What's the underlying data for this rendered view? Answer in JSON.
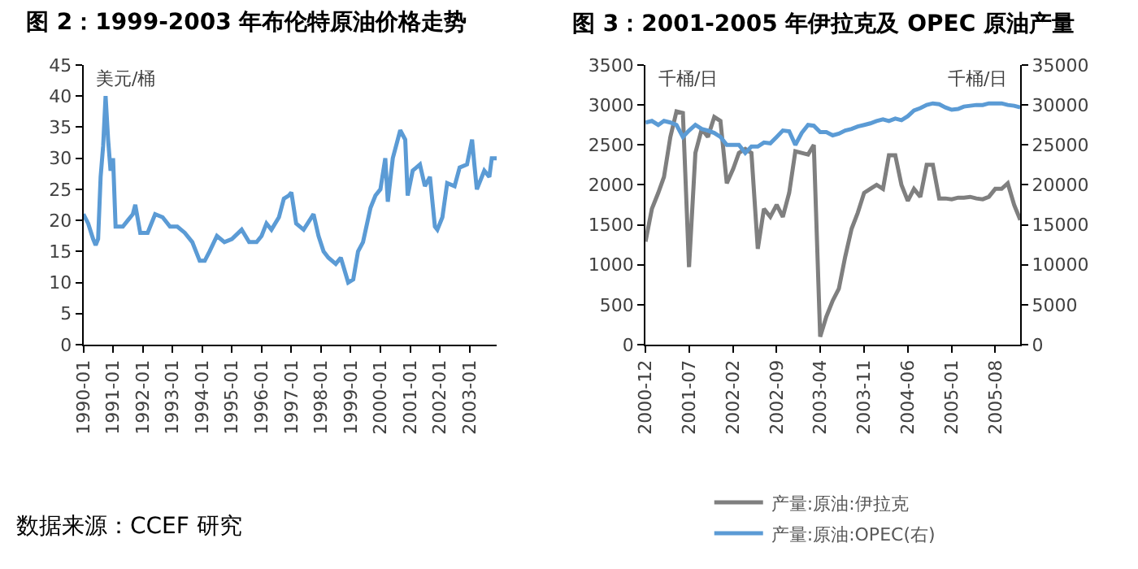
{
  "chart_data": [
    {
      "type": "line",
      "title": "图 2：1999-2003 年布伦特原油价格走势",
      "ylabel": "美元/桶",
      "x": [
        "1990-01",
        "1990-03",
        "1990-05",
        "1990-06",
        "1990-07",
        "1990-08",
        "1990-09",
        "1990-10",
        "1990-11",
        "1990-12",
        "1991-01",
        "1991-02",
        "1991-03",
        "1991-05",
        "1991-07",
        "1991-09",
        "1991-10",
        "1991-12",
        "1992-03",
        "1992-06",
        "1992-09",
        "1992-12",
        "1993-03",
        "1993-06",
        "1993-09",
        "1993-12",
        "1994-02",
        "1994-04",
        "1994-07",
        "1994-10",
        "1995-01",
        "1995-05",
        "1995-08",
        "1995-11",
        "1996-01",
        "1996-03",
        "1996-05",
        "1996-08",
        "1996-10",
        "1996-12",
        "1997-01",
        "1997-03",
        "1997-06",
        "1997-10",
        "1997-12",
        "1998-02",
        "1998-04",
        "1998-07",
        "1998-09",
        "1998-12",
        "1999-02",
        "1999-04",
        "1999-06",
        "1999-09",
        "1999-11",
        "2000-01",
        "2000-03",
        "2000-04",
        "2000-06",
        "2000-09",
        "2000-11",
        "2000-12",
        "2001-02",
        "2001-05",
        "2001-07",
        "2001-09",
        "2001-11",
        "2001-12",
        "2002-02",
        "2002-04",
        "2002-07",
        "2002-09",
        "2002-12",
        "2003-02",
        "2003-03",
        "2003-04",
        "2003-07",
        "2003-09",
        "2003-10",
        "2003-12"
      ],
      "series": [
        {
          "color": "#5b9bd5",
          "values": [
            21,
            19.5,
            17,
            16,
            17,
            27,
            32,
            40,
            33,
            28,
            30,
            19,
            19,
            19,
            20,
            21,
            22.5,
            18,
            18,
            21,
            20.5,
            19,
            19,
            18,
            16.5,
            13.5,
            13.5,
            15,
            17.5,
            16.5,
            17,
            18.5,
            16.5,
            16.5,
            17.5,
            19.5,
            18.5,
            20.5,
            23.5,
            24,
            24.5,
            19.5,
            18.5,
            21,
            17.5,
            15,
            14,
            13,
            14,
            10,
            10.5,
            15,
            16.5,
            22,
            24,
            25,
            30,
            23,
            30,
            34.5,
            33,
            24,
            28,
            29,
            25.5,
            27,
            19,
            18.5,
            20.5,
            26,
            25.5,
            28.5,
            29,
            33,
            29,
            25,
            28,
            27,
            30,
            30
          ]
        }
      ],
      "xlim": [
        "1990-01",
        "2003-12"
      ],
      "xticks": [
        {
          "value": "1990-01",
          "label": "1990-01"
        },
        {
          "value": "1991-01",
          "label": "1991-01"
        },
        {
          "value": "1992-01",
          "label": "1992-01"
        },
        {
          "value": "1993-01",
          "label": "1993-01"
        },
        {
          "value": "1994-01",
          "label": "1994-01"
        },
        {
          "value": "1995-01",
          "label": "1995-01"
        },
        {
          "value": "1996-01",
          "label": "1996-01"
        },
        {
          "value": "1997-01",
          "label": "1997-01"
        },
        {
          "value": "1998-01",
          "label": "1998-01"
        },
        {
          "value": "1999-01",
          "label": "1999-01"
        },
        {
          "value": "2000-01",
          "label": "2000-01"
        },
        {
          "value": "2001-01",
          "label": "2001-01"
        },
        {
          "value": "2002-01",
          "label": "2002-01"
        },
        {
          "value": "2003-01",
          "label": "2003-01"
        }
      ],
      "ylim": [
        0,
        45
      ],
      "yticks": [
        0,
        5,
        10,
        15,
        20,
        25,
        30,
        35,
        40,
        45
      ],
      "legend": false,
      "annotations": [
        "数据来源：CCEF 研究"
      ]
    },
    {
      "type": "line",
      "title": "图 3：2001-2005 年伊拉克及 OPEC 原油产量",
      "ylabel": "千桶/日",
      "y2label": "千桶/日",
      "x": [
        "2000-12",
        "2001-01",
        "2001-02",
        "2001-03",
        "2001-04",
        "2001-05",
        "2001-06",
        "2001-07",
        "2001-08",
        "2001-09",
        "2001-10",
        "2001-11",
        "2001-12",
        "2002-01",
        "2002-02",
        "2002-03",
        "2002-04",
        "2002-05",
        "2002-06",
        "2002-07",
        "2002-08",
        "2002-09",
        "2002-10",
        "2002-11",
        "2002-12",
        "2003-01",
        "2003-02",
        "2003-03",
        "2003-04",
        "2003-05",
        "2003-06",
        "2003-07",
        "2003-08",
        "2003-09",
        "2003-10",
        "2003-11",
        "2003-12",
        "2004-01",
        "2004-02",
        "2004-03",
        "2004-04",
        "2004-05",
        "2004-06",
        "2004-07",
        "2004-08",
        "2004-09",
        "2004-10",
        "2004-11",
        "2004-12",
        "2005-01",
        "2005-02",
        "2005-03",
        "2005-04",
        "2005-05",
        "2005-06",
        "2005-07",
        "2005-08",
        "2005-09",
        "2005-10",
        "2005-11",
        "2005-12"
      ],
      "series": [
        {
          "name": "产量:原油:伊拉克",
          "color": "#7f7f7f",
          "values": [
            1290,
            1700,
            1900,
            2100,
            2600,
            2920,
            2900,
            970,
            2400,
            2700,
            2600,
            2850,
            2800,
            2020,
            2200,
            2400,
            2450,
            2400,
            1200,
            1700,
            1600,
            1750,
            1600,
            1900,
            2420,
            2400,
            2380,
            2500,
            100,
            350,
            550,
            700,
            1100,
            1450,
            1650,
            1900,
            1950,
            2000,
            1950,
            2370,
            2370,
            2000,
            1800,
            1950,
            1850,
            2250,
            2250,
            1830,
            1830,
            1820,
            1840,
            1840,
            1850,
            1830,
            1820,
            1850,
            1950,
            1950,
            2020,
            1750,
            1560
          ]
        },
        {
          "name": "产量:原油:OPEC(右)",
          "color": "#5b9bd5",
          "axis": "y2",
          "values": [
            27800,
            28000,
            27500,
            28000,
            27800,
            27500,
            26000,
            26800,
            27500,
            27000,
            26800,
            26500,
            26000,
            25000,
            25000,
            25000,
            24000,
            24800,
            24800,
            25300,
            25200,
            26000,
            26800,
            26700,
            25000,
            26500,
            27500,
            27400,
            26600,
            26600,
            26200,
            26400,
            26800,
            27000,
            27300,
            27500,
            27700,
            28000,
            28200,
            28000,
            28300,
            28100,
            28600,
            29300,
            29600,
            30000,
            30200,
            30100,
            29700,
            29400,
            29500,
            29800,
            29900,
            30000,
            30000,
            30200,
            30200,
            30200,
            30000,
            29900,
            29700
          ]
        }
      ],
      "xlim": [
        "2000-12",
        "2005-12"
      ],
      "xticks": [
        {
          "value": "2000-12",
          "label": "2000-12"
        },
        {
          "value": "2001-07",
          "label": "2001-07"
        },
        {
          "value": "2002-02",
          "label": "2002-02"
        },
        {
          "value": "2002-09",
          "label": "2002-09"
        },
        {
          "value": "2003-04",
          "label": "2003-04"
        },
        {
          "value": "2003-11",
          "label": "2003-11"
        },
        {
          "value": "2004-06",
          "label": "2004-06"
        },
        {
          "value": "2005-01",
          "label": "2005-01"
        },
        {
          "value": "2005-08",
          "label": "2005-08"
        }
      ],
      "ylim": [
        0,
        3500
      ],
      "yticks": [
        0,
        500,
        1000,
        1500,
        2000,
        2500,
        3000,
        3500
      ],
      "y2lim": [
        0,
        35000
      ],
      "y2ticks": [
        0,
        5000,
        10000,
        15000,
        20000,
        25000,
        30000,
        35000
      ],
      "legend": "bottom"
    }
  ]
}
